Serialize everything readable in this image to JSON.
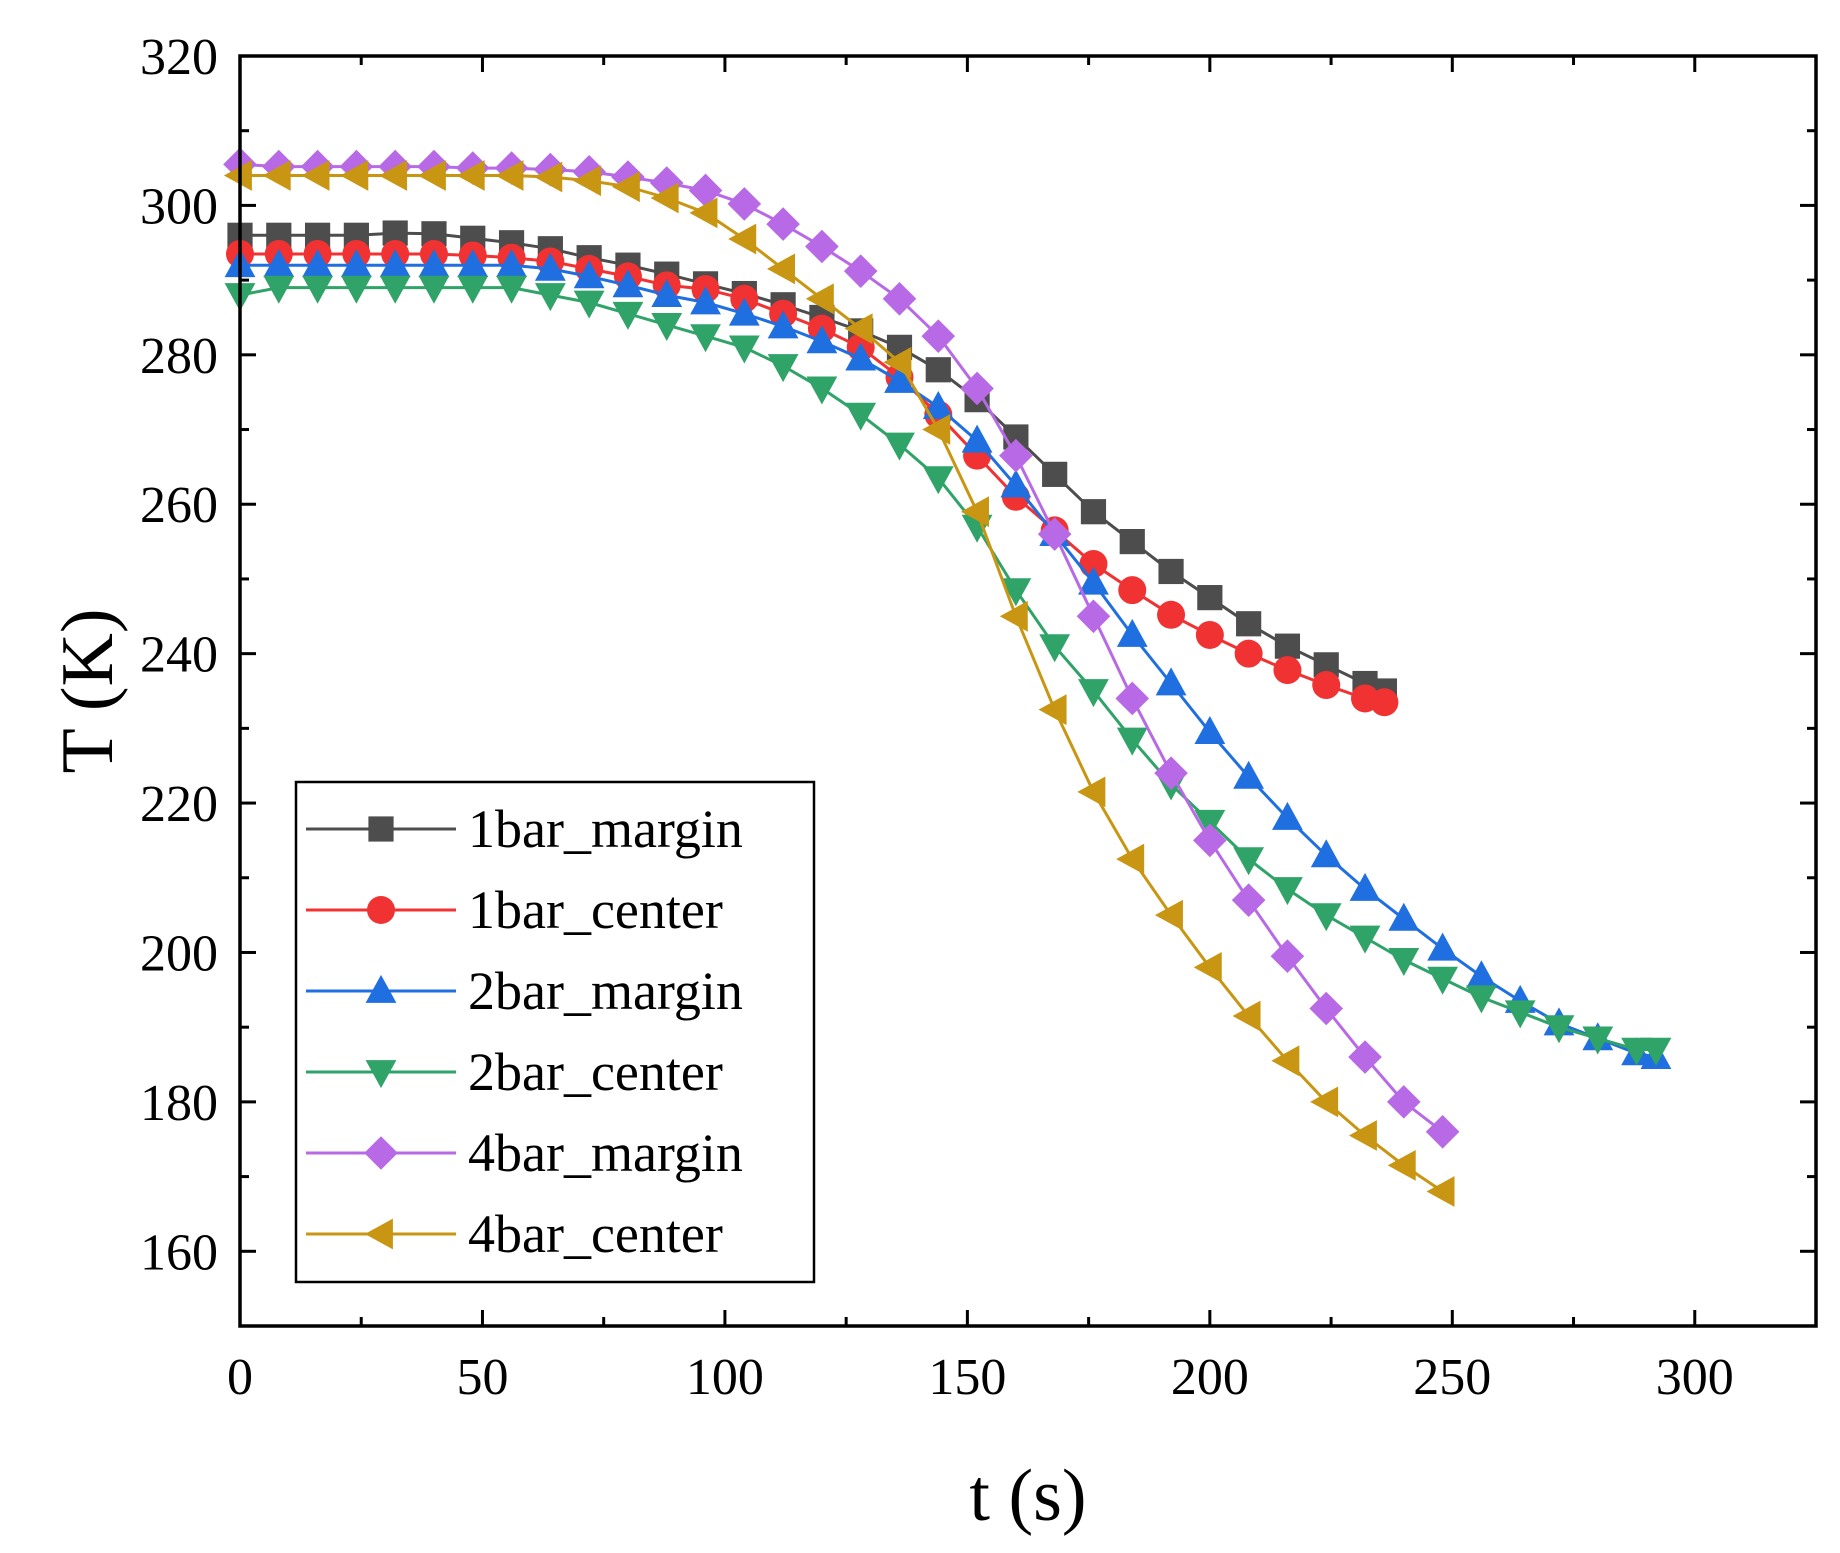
{
  "chart_data": {
    "type": "line",
    "xlabel": "t (s)",
    "ylabel": "T (K)",
    "xlim": [
      0,
      325
    ],
    "ylim": [
      150,
      320
    ],
    "xticks": [
      0,
      50,
      100,
      150,
      200,
      250,
      300
    ],
    "yticks": [
      160,
      180,
      200,
      220,
      240,
      260,
      280,
      300,
      320
    ],
    "grid": false,
    "legend_position": "bottom-left",
    "series": [
      {
        "name": "1bar_margin",
        "color": "#4d4d4d",
        "marker": "square",
        "points": [
          [
            0,
            296
          ],
          [
            8,
            296
          ],
          [
            16,
            296
          ],
          [
            24,
            296
          ],
          [
            32,
            296.3
          ],
          [
            40,
            296.2
          ],
          [
            48,
            295.6
          ],
          [
            56,
            295
          ],
          [
            64,
            294.2
          ],
          [
            72,
            293
          ],
          [
            80,
            292
          ],
          [
            88,
            290.8
          ],
          [
            96,
            289.5
          ],
          [
            104,
            288.2
          ],
          [
            112,
            286.7
          ],
          [
            120,
            285
          ],
          [
            128,
            283.2
          ],
          [
            136,
            281
          ],
          [
            144,
            278
          ],
          [
            152,
            274
          ],
          [
            160,
            269
          ],
          [
            168,
            264
          ],
          [
            176,
            259
          ],
          [
            184,
            255
          ],
          [
            192,
            251
          ],
          [
            200,
            247.5
          ],
          [
            208,
            244
          ],
          [
            216,
            241
          ],
          [
            224,
            238.5
          ],
          [
            232,
            236
          ],
          [
            236,
            235
          ]
        ]
      },
      {
        "name": "1bar_center",
        "color": "#f03232",
        "marker": "circle",
        "points": [
          [
            0,
            293.5
          ],
          [
            8,
            293.5
          ],
          [
            16,
            293.5
          ],
          [
            24,
            293.5
          ],
          [
            32,
            293.5
          ],
          [
            40,
            293.5
          ],
          [
            48,
            293.3
          ],
          [
            56,
            293
          ],
          [
            64,
            292.5
          ],
          [
            72,
            291.5
          ],
          [
            80,
            290.5
          ],
          [
            88,
            289.3
          ],
          [
            96,
            288.8
          ],
          [
            104,
            287.5
          ],
          [
            112,
            285.5
          ],
          [
            120,
            283.5
          ],
          [
            128,
            281
          ],
          [
            136,
            277
          ],
          [
            144,
            272
          ],
          [
            152,
            266.5
          ],
          [
            160,
            261
          ],
          [
            168,
            256.5
          ],
          [
            176,
            252
          ],
          [
            184,
            248.5
          ],
          [
            192,
            245.2
          ],
          [
            200,
            242.5
          ],
          [
            208,
            240
          ],
          [
            216,
            237.8
          ],
          [
            224,
            235.8
          ],
          [
            232,
            234
          ],
          [
            236,
            233.5
          ]
        ]
      },
      {
        "name": "2bar_margin",
        "color": "#1f6fe0",
        "marker": "triangle-up",
        "points": [
          [
            0,
            292
          ],
          [
            8,
            292
          ],
          [
            16,
            292
          ],
          [
            24,
            292
          ],
          [
            32,
            292
          ],
          [
            40,
            292
          ],
          [
            48,
            292
          ],
          [
            56,
            292
          ],
          [
            64,
            291.5
          ],
          [
            72,
            290.5
          ],
          [
            80,
            289.3
          ],
          [
            88,
            288
          ],
          [
            96,
            287
          ],
          [
            104,
            285.5
          ],
          [
            112,
            283.8
          ],
          [
            120,
            281.8
          ],
          [
            128,
            279.5
          ],
          [
            136,
            276.5
          ],
          [
            144,
            273
          ],
          [
            152,
            268.5
          ],
          [
            160,
            262.5
          ],
          [
            168,
            256
          ],
          [
            176,
            249.5
          ],
          [
            184,
            242.5
          ],
          [
            192,
            236
          ],
          [
            200,
            229.5
          ],
          [
            208,
            223.5
          ],
          [
            216,
            218
          ],
          [
            224,
            213
          ],
          [
            232,
            208.5
          ],
          [
            240,
            204.5
          ],
          [
            248,
            200.5
          ],
          [
            256,
            196.8
          ],
          [
            264,
            193.5
          ],
          [
            272,
            190.5
          ],
          [
            280,
            188.5
          ],
          [
            288,
            186.5
          ],
          [
            292,
            186
          ]
        ]
      },
      {
        "name": "2bar_center",
        "color": "#2fa368",
        "marker": "triangle-down",
        "points": [
          [
            0,
            288
          ],
          [
            8,
            289
          ],
          [
            16,
            289
          ],
          [
            24,
            289
          ],
          [
            32,
            289
          ],
          [
            40,
            289
          ],
          [
            48,
            289
          ],
          [
            56,
            289
          ],
          [
            64,
            288
          ],
          [
            72,
            287
          ],
          [
            80,
            285.5
          ],
          [
            88,
            284
          ],
          [
            96,
            282.5
          ],
          [
            104,
            281
          ],
          [
            112,
            278.5
          ],
          [
            120,
            275.5
          ],
          [
            128,
            272
          ],
          [
            136,
            268
          ],
          [
            144,
            263.5
          ],
          [
            152,
            257
          ],
          [
            160,
            248.5
          ],
          [
            168,
            241
          ],
          [
            176,
            235
          ],
          [
            184,
            228.5
          ],
          [
            192,
            222.5
          ],
          [
            200,
            217.5
          ],
          [
            208,
            212.5
          ],
          [
            216,
            208.5
          ],
          [
            224,
            205
          ],
          [
            232,
            202
          ],
          [
            240,
            199
          ],
          [
            248,
            196.5
          ],
          [
            256,
            194
          ],
          [
            264,
            192
          ],
          [
            272,
            190
          ],
          [
            280,
            188.5
          ],
          [
            288,
            187
          ],
          [
            292,
            187
          ]
        ]
      },
      {
        "name": "4bar_margin",
        "color": "#b86ae6",
        "marker": "diamond",
        "points": [
          [
            0,
            305.5
          ],
          [
            8,
            305.2
          ],
          [
            16,
            305.2
          ],
          [
            24,
            305.2
          ],
          [
            32,
            305.2
          ],
          [
            40,
            305.2
          ],
          [
            48,
            305
          ],
          [
            56,
            305
          ],
          [
            64,
            304.8
          ],
          [
            72,
            304.5
          ],
          [
            80,
            303.8
          ],
          [
            88,
            303
          ],
          [
            96,
            302
          ],
          [
            104,
            300.2
          ],
          [
            112,
            297.5
          ],
          [
            120,
            294.5
          ],
          [
            128,
            291.2
          ],
          [
            136,
            287.5
          ],
          [
            144,
            282.5
          ],
          [
            152,
            275.5
          ],
          [
            160,
            266.5
          ],
          [
            168,
            256
          ],
          [
            176,
            245
          ],
          [
            184,
            234
          ],
          [
            192,
            224
          ],
          [
            200,
            215
          ],
          [
            208,
            207
          ],
          [
            216,
            199.5
          ],
          [
            224,
            192.5
          ],
          [
            232,
            186
          ],
          [
            240,
            180
          ],
          [
            248,
            176
          ]
        ]
      },
      {
        "name": "4bar_center",
        "color": "#c89612",
        "marker": "triangle-left",
        "points": [
          [
            0,
            304
          ],
          [
            8,
            304
          ],
          [
            16,
            304
          ],
          [
            24,
            304
          ],
          [
            32,
            304
          ],
          [
            40,
            304
          ],
          [
            48,
            304
          ],
          [
            56,
            304
          ],
          [
            64,
            303.8
          ],
          [
            72,
            303.3
          ],
          [
            80,
            302.5
          ],
          [
            88,
            301
          ],
          [
            96,
            299
          ],
          [
            104,
            295.5
          ],
          [
            112,
            291.5
          ],
          [
            120,
            287.5
          ],
          [
            128,
            283.5
          ],
          [
            136,
            279
          ],
          [
            144,
            270
          ],
          [
            152,
            259
          ],
          [
            160,
            245
          ],
          [
            168,
            232.5
          ],
          [
            176,
            221.5
          ],
          [
            184,
            212.5
          ],
          [
            192,
            205
          ],
          [
            200,
            198
          ],
          [
            208,
            191.5
          ],
          [
            216,
            185.5
          ],
          [
            224,
            180
          ],
          [
            232,
            175.5
          ],
          [
            240,
            171.5
          ],
          [
            248,
            168
          ]
        ]
      }
    ]
  }
}
